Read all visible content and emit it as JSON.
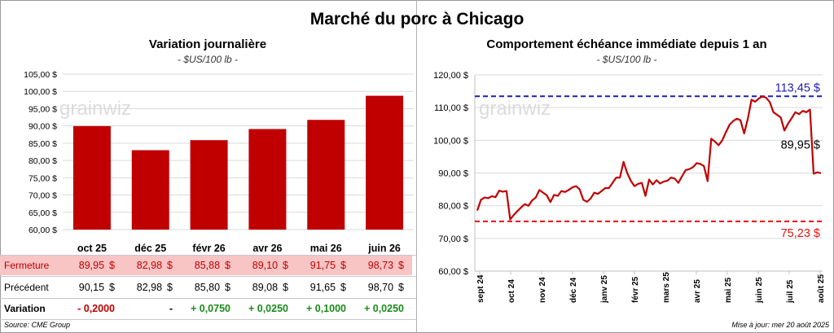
{
  "title": "Marché du porc à Chicago",
  "left_panel": {
    "title": "Variation journalière",
    "subtitle": "- $US/100 lb -",
    "watermark": "grainwiz"
  },
  "right_panel": {
    "title": "Comportement échéance immédiate depuis 1 an",
    "subtitle": "- $US/100 lb -",
    "watermark": "grainwiz"
  },
  "chart_data": [
    {
      "type": "bar",
      "categories": [
        "oct 25",
        "déc 25",
        "févr 26",
        "avr 26",
        "mai 26",
        "juin 26"
      ],
      "values": [
        89.95,
        82.98,
        85.88,
        89.1,
        91.75,
        98.73
      ],
      "ylim": [
        60,
        105
      ],
      "yticks": [
        "60,00 $",
        "65,00 $",
        "70,00 $",
        "75,00 $",
        "80,00 $",
        "85,00 $",
        "90,00 $",
        "95,00 $",
        "100,00 $",
        "105,00 $"
      ],
      "ytick_values": [
        60,
        65,
        70,
        75,
        80,
        85,
        90,
        95,
        100,
        105
      ],
      "bar_color": "#c00000",
      "grid": "horizontal",
      "table": {
        "rows": [
          {
            "label": "Fermeture",
            "values": [
              "89,95",
              "82,98",
              "85,88",
              "89,10",
              "91,75",
              "98,73"
            ],
            "currency": "$"
          },
          {
            "label": "Précédent",
            "values": [
              "90,15",
              "82,98",
              "85,80",
              "89,08",
              "91,65",
              "98,70"
            ],
            "currency": "$"
          },
          {
            "label": "Variation",
            "values": [
              "- 0,2000",
              "-",
              "+ 0,0750",
              "+ 0,0250",
              "+ 0,1000",
              "+ 0,0250"
            ]
          }
        ]
      }
    },
    {
      "type": "line",
      "x_labels": [
        "sept 24",
        "oct 24",
        "nov 24",
        "déc 24",
        "janv 25",
        "févr 25",
        "mars 25",
        "avr 25",
        "mai 25",
        "juin 25",
        "juil 25",
        "août 25"
      ],
      "ylim": [
        60,
        120
      ],
      "yticks": [
        "60,00 $",
        "70,00 $",
        "80,00 $",
        "90,00 $",
        "100,00 $",
        "110,00 $",
        "120,00 $"
      ],
      "ytick_values": [
        60,
        70,
        80,
        90,
        100,
        110,
        120
      ],
      "series": [
        {
          "color": "#c00000",
          "values": [
            78.5,
            81.8,
            82.5,
            82.3,
            82.9,
            82.6,
            84.6,
            84.3,
            84.5,
            75.8,
            77.2,
            78.4,
            79.5,
            80.5,
            80.0,
            81.6,
            82.5,
            84.8,
            84.0,
            83.2,
            81.1,
            83.3,
            83.0,
            84.5,
            84.2,
            84.8,
            85.6,
            86.0,
            85.0,
            81.8,
            81.2,
            82.2,
            84.0,
            83.6,
            84.5,
            85.4,
            85.4,
            87.0,
            88.6,
            88.6,
            93.4,
            90.0,
            87.6,
            86.0,
            86.7,
            87.0,
            83.0,
            88.0,
            86.5,
            87.8,
            86.8,
            87.4,
            87.6,
            88.6,
            88.3,
            87.0,
            89.0,
            90.9,
            91.2,
            91.8,
            93.0,
            92.8,
            92.1,
            87.5,
            100.5,
            99.6,
            98.5,
            100.0,
            102.5,
            104.8,
            105.9,
            106.6,
            106.1,
            102.1,
            106.6,
            112.4,
            111.8,
            112.8,
            113.45,
            113.0,
            111.7,
            108.6,
            107.8,
            107.0,
            103.0,
            105.1,
            106.8,
            108.6,
            108.0,
            109.0,
            108.6,
            109.4,
            89.8,
            90.2,
            89.95
          ]
        }
      ],
      "reference_lines": [
        {
          "value": 113.45,
          "label": "113,45 $",
          "color": "#1f1faf",
          "style": "dashed"
        },
        {
          "value": 75.23,
          "label": "75,23 $",
          "color": "#e81010",
          "style": "dashed"
        }
      ],
      "annotation": {
        "value": 89.95,
        "label": "89,95 $"
      },
      "grid": "horizontal"
    }
  ],
  "footer": {
    "source": "Source: CME Group",
    "updated": "Mise à jour: mer 20 août 2025"
  }
}
